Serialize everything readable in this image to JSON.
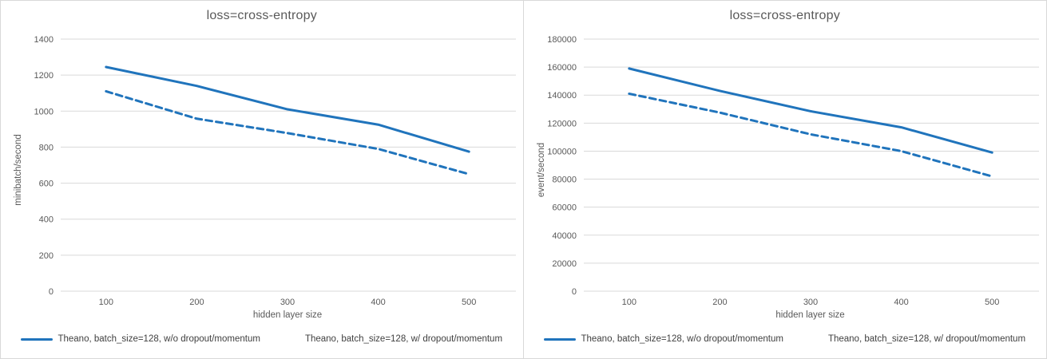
{
  "page": {
    "accent_color": "#2074BC",
    "gridline_color": "#D9D9D9",
    "axis_text_color": "#595959",
    "legend_text_color": "#404040"
  },
  "chart_data": [
    {
      "type": "line",
      "title": "loss=cross-entropy",
      "xlabel": "hidden layer size",
      "ylabel": "minibatch/second",
      "x": [
        100,
        200,
        300,
        400,
        500
      ],
      "ylim": [
        0,
        1400
      ],
      "ytick_step": 200,
      "grid": "horizontal",
      "legend_position": "bottom",
      "series": [
        {
          "name": "Theano, batch_size=128, w/o dropout/momentum",
          "style": "solid",
          "values": [
            1245,
            1140,
            1010,
            925,
            775
          ]
        },
        {
          "name": "Theano, batch_size=128, w/ dropout/momentum",
          "style": "dashed",
          "values": [
            1110,
            958,
            878,
            790,
            650
          ]
        }
      ]
    },
    {
      "type": "line",
      "title": "loss=cross-entropy",
      "xlabel": "hidden layer size",
      "ylabel": "event/second",
      "x": [
        100,
        200,
        300,
        400,
        500
      ],
      "ylim": [
        0,
        180000
      ],
      "ytick_step": 20000,
      "grid": "horizontal",
      "legend_position": "bottom",
      "series": [
        {
          "name": "Theano, batch_size=128, w/o dropout/momentum",
          "style": "solid",
          "values": [
            159000,
            143000,
            128500,
            117000,
            99000
          ]
        },
        {
          "name": "Theano, batch_size=128, w/ dropout/momentum",
          "style": "dashed",
          "values": [
            141000,
            127500,
            112000,
            100000,
            82000
          ]
        }
      ]
    }
  ]
}
